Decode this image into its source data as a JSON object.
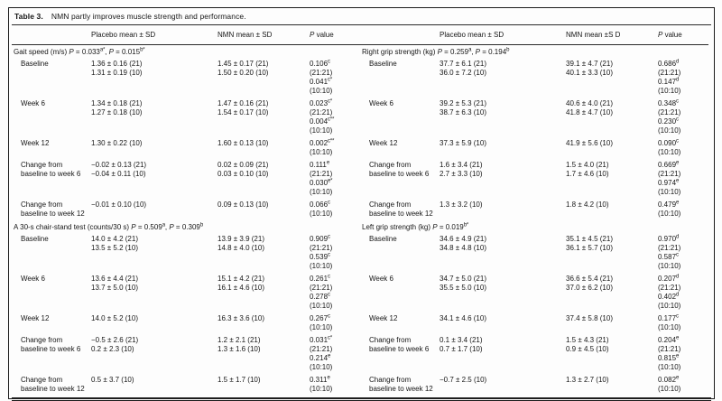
{
  "title": {
    "label": "Table 3.",
    "caption": "NMN partly improves muscle strength and performance."
  },
  "columns": {
    "left": [
      "",
      "Placebo mean ± SD",
      "NMN mean ± SD",
      "P value"
    ],
    "right": [
      "",
      "Placebo mean ± SD",
      "NMN mean ±S D",
      "P value"
    ]
  },
  "sections": [
    {
      "left_header": {
        "name": "Gait speed (m/s)",
        "p": "P = 0.033^{a*}, P = 0.015^{b*}"
      },
      "right_header": {
        "name": "Right grip strength (kg)",
        "p": "P = 0.259^{a}, P = 0.194^{b}"
      },
      "rows": [
        {
          "left": {
            "label": [
              "Baseline"
            ],
            "placebo": [
              "1.36 ± 0.16 (21)",
              "1.31 ± 0.19 (10)"
            ],
            "nmn": [
              "1.45 ± 0.17 (21)",
              "1.50 ± 0.20 (10)"
            ],
            "p": [
              "0.106^{c}",
              "(21:21)",
              "0.041^{c*}",
              "(10:10)"
            ]
          },
          "right": {
            "label": [
              "Baseline"
            ],
            "placebo": [
              "37.7 ± 6.1 (21)",
              "36.0 ± 7.2 (10)"
            ],
            "nmn": [
              "39.1 ± 4.7 (21)",
              "40.1 ± 3.3 (10)"
            ],
            "p": [
              "0.686^{d}",
              "(21:21)",
              "0.147^{d}",
              "(10:10)"
            ]
          }
        },
        {
          "left": {
            "label": [
              "Week 6"
            ],
            "placebo": [
              "1.34 ± 0.18 (21)",
              "1.27 ± 0.18 (10)"
            ],
            "nmn": [
              "1.47 ± 0.16 (21)",
              "1.54 ± 0.17 (10)"
            ],
            "p": [
              "0.023^{c*}",
              "(21:21)",
              "0.004^{c**}",
              "(10:10)"
            ]
          },
          "right": {
            "label": [
              "Week 6"
            ],
            "placebo": [
              "39.2 ± 5.3 (21)",
              "38.7 ± 6.3 (10)"
            ],
            "nmn": [
              "40.6 ± 4.0 (21)",
              "41.8 ± 4.7 (10)"
            ],
            "p": [
              "0.348^{c}",
              "(21:21)",
              "0.230^{c}",
              "(10:10)"
            ]
          }
        },
        {
          "left": {
            "label": [
              "Week 12"
            ],
            "placebo": [
              "1.30 ± 0.22 (10)"
            ],
            "nmn": [
              "1.60 ± 0.13 (10)"
            ],
            "p": [
              "0.002^{c**}",
              "(10:10)"
            ]
          },
          "right": {
            "label": [
              "Week 12"
            ],
            "placebo": [
              "37.3 ± 5.9 (10)"
            ],
            "nmn": [
              "41.9 ± 5.6 (10)"
            ],
            "p": [
              "0.090^{c}",
              "(10:10)"
            ]
          }
        },
        {
          "left": {
            "label": [
              "Change from",
              "baseline to week 6"
            ],
            "placebo": [
              "−0.02 ± 0.13 (21)",
              "−0.04 ± 0.11 (10)"
            ],
            "nmn": [
              "0.02 ± 0.09 (21)",
              "0.03 ± 0.10 (10)"
            ],
            "p": [
              "0.111^{e}",
              "(21:21)",
              "0.030^{e*}",
              "(10:10)"
            ]
          },
          "right": {
            "label": [
              "Change from",
              "baseline to week 6"
            ],
            "placebo": [
              "1.6 ± 3.4 (21)",
              "2.7 ± 3.3 (10)"
            ],
            "nmn": [
              "1.5 ± 4.0 (21)",
              "1.7 ± 4.6 (10)"
            ],
            "p": [
              "0.669^{e}",
              "(21:21)",
              "0.974^{e}",
              "(10:10)"
            ]
          }
        },
        {
          "left": {
            "label": [
              "Change from",
              "baseline to week 12"
            ],
            "placebo": [
              "−0.01 ± 0.10 (10)"
            ],
            "nmn": [
              "0.09 ± 0.13 (10)"
            ],
            "p": [
              "0.066^{c}",
              "(10:10)"
            ]
          },
          "right": {
            "label": [
              "Change from",
              "baseline to week 12"
            ],
            "placebo": [
              "1.3 ± 3.2 (10)"
            ],
            "nmn": [
              "1.8 ± 4.2 (10)"
            ],
            "p": [
              "0.479^{e}",
              "(10:10)"
            ]
          }
        }
      ]
    },
    {
      "left_header": {
        "name": "A 30-s chair-stand test (counts/30 s)",
        "p": "P = 0.509^{a}, P = 0.309^{b}"
      },
      "right_header": {
        "name": "Left grip strength (kg)",
        "p": "P = 0.019^{b*}"
      },
      "rows": [
        {
          "left": {
            "label": [
              "Baseline"
            ],
            "placebo": [
              "14.0 ± 4.2 (21)",
              "13.5 ± 5.2 (10)"
            ],
            "nmn": [
              "13.9 ± 3.9 (21)",
              "14.8 ± 4.0 (10)"
            ],
            "p": [
              "0.909^{c}",
              "(21:21)",
              "0.539^{c}",
              "(10:10)"
            ]
          },
          "right": {
            "label": [
              "Baseline"
            ],
            "placebo": [
              "34.6 ± 4.9 (21)",
              "34.8 ± 4.8 (10)"
            ],
            "nmn": [
              "35.1 ± 4.5 (21)",
              "36.1 ± 5.7 (10)"
            ],
            "p": [
              "0.970^{d}",
              "(21:21)",
              "0.587^{c}",
              "(10:10)"
            ]
          }
        },
        {
          "left": {
            "label": [
              "Week 6"
            ],
            "placebo": [
              "13.6 ± 4.4 (21)",
              "13.7 ± 5.0 (10)"
            ],
            "nmn": [
              "15.1 ± 4.2 (21)",
              "16.1 ± 4.6 (10)"
            ],
            "p": [
              "0.261^{c}",
              "(21:21)",
              "0.278^{c}",
              "(10:10)"
            ]
          },
          "right": {
            "label": [
              "Week 6"
            ],
            "placebo": [
              "34.7 ± 5.0 (21)",
              "35.5 ± 5.0 (10)"
            ],
            "nmn": [
              "36.6 ± 5.4 (21)",
              "37.0 ± 6.2 (10)"
            ],
            "p": [
              "0.207^{d}",
              "(21:21)",
              "0.402^{d}",
              "(10:10)"
            ]
          }
        },
        {
          "left": {
            "label": [
              "Week 12"
            ],
            "placebo": [
              "14.0 ± 5.2 (10)"
            ],
            "nmn": [
              "16.3 ± 3.6 (10)"
            ],
            "p": [
              "0.267^{c}",
              "(10:10)"
            ]
          },
          "right": {
            "label": [
              "Week 12"
            ],
            "placebo": [
              "34.1 ± 4.6 (10)"
            ],
            "nmn": [
              "37.4 ± 5.8 (10)"
            ],
            "p": [
              "0.177^{c}",
              "(10:10)"
            ]
          }
        },
        {
          "left": {
            "label": [
              "Change from",
              "baseline to week 6"
            ],
            "placebo": [
              "−0.5 ± 2.6 (21)",
              "0.2 ± 2.3 (10)"
            ],
            "nmn": [
              "1.2 ± 2.1 (21)",
              "1.3 ± 1.6 (10)"
            ],
            "p": [
              "0.031^{c*}",
              "(21:21)",
              "0.214^{e}",
              "(10:10)"
            ]
          },
          "right": {
            "label": [
              "Change from",
              "baseline to week 6"
            ],
            "placebo": [
              "0.1 ± 3.4 (21)",
              "0.7 ± 1.7 (10)"
            ],
            "nmn": [
              "1.5 ± 4.3 (21)",
              "0.9 ± 4.5 (10)"
            ],
            "p": [
              "0.204^{e}",
              "(21:21)",
              "0.815^{e}",
              "(10:10)"
            ]
          }
        },
        {
          "left": {
            "label": [
              "Change from",
              "baseline to week 12"
            ],
            "placebo": [
              "0.5 ± 3.7 (10)"
            ],
            "nmn": [
              "1.5 ± 1.7 (10)"
            ],
            "p": [
              "0.311^{e}",
              "(10:10)"
            ]
          },
          "right": {
            "label": [
              "Change from",
              "baseline to week 12"
            ],
            "placebo": [
              "−0.7 ± 2.5 (10)"
            ],
            "nmn": [
              "1.3 ± 2.7 (10)"
            ],
            "p": [
              "0.082^{e}",
              "(10:10)"
            ]
          }
        }
      ]
    }
  ]
}
